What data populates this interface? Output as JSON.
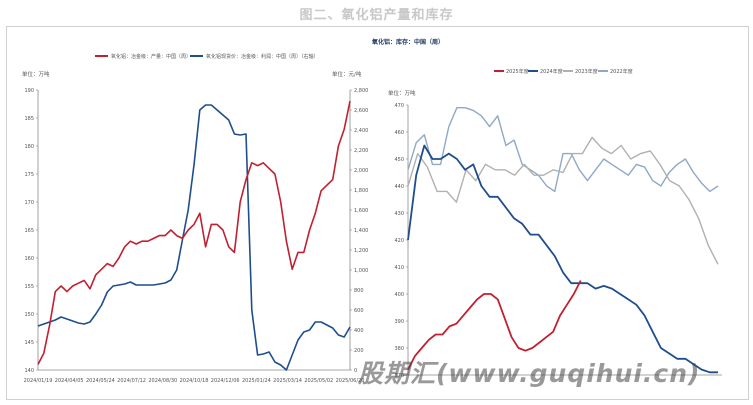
{
  "page": {
    "figure_title": "图二、氧化铝产量和库存",
    "watermark": "股期汇(www.guqihui.cn)",
    "right_panel_title": "氧化铝：库存：中国（周）"
  },
  "colors": {
    "red": "#c0202f",
    "navy": "#1f4e8c",
    "grey": "#b0b0b0",
    "lightblue": "#8fa8c8",
    "axis": "#8a8a8a",
    "text": "#555555"
  },
  "chart_data": [
    {
      "type": "line",
      "title": "",
      "ylabel_left": "单位：万吨",
      "ylabel_right": "单位：元/吨",
      "ylim_left": [
        140,
        190
      ],
      "ylim_right": [
        0,
        2800
      ],
      "yticks_left": [
        140,
        145,
        150,
        155,
        160,
        165,
        170,
        175,
        180,
        185,
        190
      ],
      "yticks_right": [
        0,
        200,
        400,
        600,
        800,
        1000,
        1200,
        1400,
        1600,
        1800,
        2000,
        2200,
        2400,
        2600,
        2800
      ],
      "xticks": [
        "2024/01/19",
        "2024/04/05",
        "2024/05/24",
        "2024/07/12",
        "2024/08/30",
        "2024/10/18",
        "2024/12/06",
        "2025/01/24",
        "2025/03/14",
        "2025/05/02",
        "2025/06/20"
      ],
      "legend_position": "top",
      "grid": false,
      "series": [
        {
          "name": "氧化铝：冶金级：产量：中国（周）",
          "axis": "left",
          "color": "#c0202f",
          "values": [
            141,
            143,
            148,
            154,
            155,
            154,
            155,
            155.5,
            156,
            154.5,
            157,
            158,
            159,
            158.5,
            160,
            162,
            163,
            162.5,
            163,
            163,
            163.5,
            164,
            164,
            165,
            164,
            163.5,
            165,
            166,
            168,
            162,
            166,
            166,
            165,
            162,
            161,
            170,
            174,
            177,
            176.5,
            177,
            176,
            175,
            170,
            163,
            158,
            161,
            161,
            165,
            168,
            172,
            173,
            174,
            180,
            183,
            188
          ]
        },
        {
          "name": "氧化铝现货价：冶金级：利润：中国（周）（右轴）",
          "axis": "right",
          "color": "#1f4e8c",
          "values": [
            440,
            460,
            480,
            500,
            530,
            510,
            490,
            470,
            460,
            480,
            560,
            650,
            780,
            840,
            850,
            860,
            880,
            850,
            850,
            850,
            850,
            860,
            870,
            900,
            1000,
            1300,
            1600,
            2050,
            2600,
            2650,
            2650,
            2600,
            2550,
            2500,
            2360,
            2350,
            2360,
            600,
            150,
            160,
            180,
            80,
            50,
            0,
            150,
            300,
            380,
            400,
            480,
            480,
            450,
            420,
            350,
            330,
            430
          ]
        }
      ]
    },
    {
      "type": "line",
      "title": "氧化铝：库存：中国（周）",
      "ylabel": "单位：万吨",
      "ylim": [
        370,
        470
      ],
      "yticks": [
        370,
        380,
        390,
        400,
        410,
        420,
        430,
        440,
        450,
        460,
        470
      ],
      "x_labels_visible": false,
      "legend_position": "top",
      "grid": false,
      "series": [
        {
          "name": "2025年度",
          "color": "#c0202f",
          "values": [
            372,
            377,
            380,
            383,
            385,
            385,
            388,
            389,
            392,
            395,
            398,
            400,
            400,
            398,
            391,
            384,
            380,
            379,
            380,
            382,
            384,
            386,
            392,
            396,
            400,
            405
          ]
        },
        {
          "name": "2024年度",
          "color": "#1f4e8c",
          "values": [
            420,
            444,
            455,
            450,
            450,
            452,
            450,
            446,
            448,
            440,
            436,
            436,
            432,
            428,
            426,
            422,
            422,
            418,
            414,
            408,
            404,
            404,
            404,
            402,
            403,
            402,
            400,
            398,
            396,
            392,
            386,
            380,
            378,
            376,
            376,
            374,
            372,
            371,
            371
          ]
        },
        {
          "name": "2023年度",
          "color": "#b0b0b0",
          "values": [
            440,
            452,
            447,
            438,
            438,
            434,
            446,
            442,
            448,
            446,
            446,
            444,
            448,
            444,
            444,
            446,
            445,
            452,
            452,
            458,
            454,
            452,
            455,
            450,
            452,
            453,
            448,
            442,
            440,
            435,
            428,
            418,
            411
          ]
        },
        {
          "name": "2022年度",
          "color": "#8fa8c8",
          "values": [
            446,
            456,
            459,
            448,
            448,
            462,
            469,
            469,
            468,
            466,
            462,
            466,
            455,
            457,
            448,
            446,
            444,
            440,
            438,
            452,
            452,
            446,
            442,
            446,
            450,
            448,
            446,
            444,
            448,
            447,
            442,
            440,
            445,
            448,
            450,
            445,
            441,
            438,
            440
          ]
        }
      ]
    }
  ]
}
